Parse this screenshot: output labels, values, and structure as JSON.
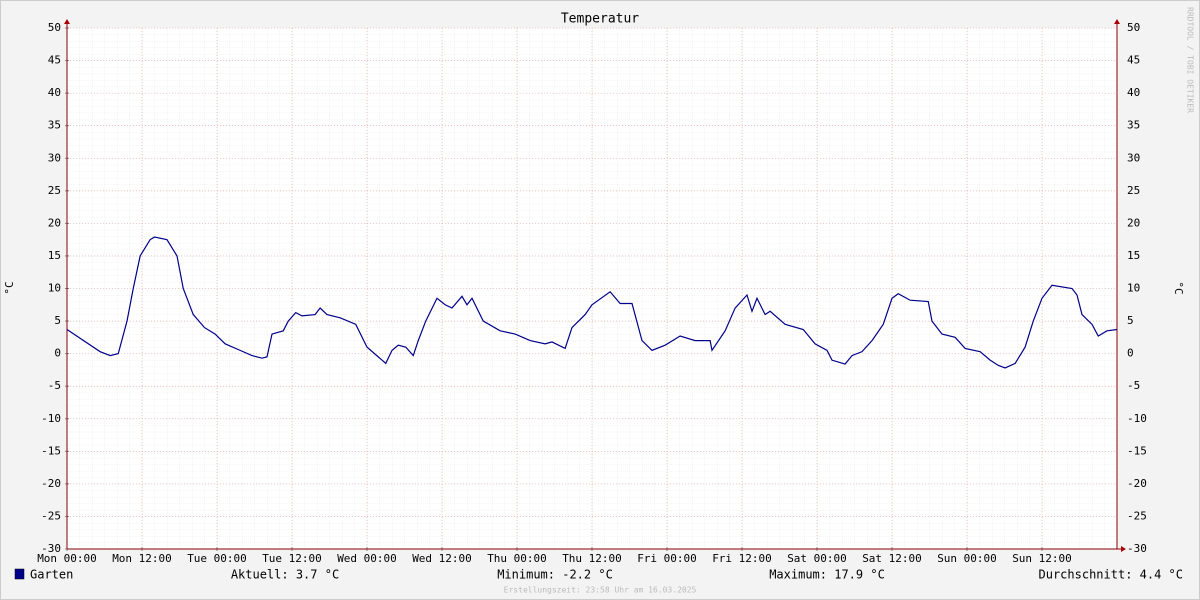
{
  "chart_data": {
    "type": "line",
    "title": "Temperatur",
    "y_label": "°C",
    "watermark": "RRDTOOL / TOBI OETIKER",
    "footer": "Erstellungszeit: 23:58 Uhr am 16.03.2025",
    "grid": true,
    "xlim": [
      0,
      168
    ],
    "xticks": [
      {
        "value": 0,
        "label": "Mon 00:00"
      },
      {
        "value": 12,
        "label": "Mon 12:00"
      },
      {
        "value": 24,
        "label": "Tue 00:00"
      },
      {
        "value": 36,
        "label": "Tue 12:00"
      },
      {
        "value": 48,
        "label": "Wed 00:00"
      },
      {
        "value": 60,
        "label": "Wed 12:00"
      },
      {
        "value": 72,
        "label": "Thu 00:00"
      },
      {
        "value": 84,
        "label": "Thu 12:00"
      },
      {
        "value": 96,
        "label": "Fri 00:00"
      },
      {
        "value": 108,
        "label": "Fri 12:00"
      },
      {
        "value": 120,
        "label": "Sat 00:00"
      },
      {
        "value": 132,
        "label": "Sat 12:00"
      },
      {
        "value": 144,
        "label": "Sun 00:00"
      },
      {
        "value": 156,
        "label": "Sun 12:00"
      }
    ],
    "ylim": [
      -30,
      50
    ],
    "yticks": [
      -30,
      -25,
      -20,
      -15,
      -10,
      -5,
      0,
      5,
      10,
      15,
      20,
      25,
      30,
      35,
      40,
      45,
      50
    ],
    "x": [
      0,
      5.3,
      6.9,
      8.2,
      9.6,
      10.6,
      11.7,
      13.3,
      14,
      16,
      17.6,
      18.6,
      20.2,
      22,
      23.7,
      25.3,
      27.7,
      29.6,
      31.2,
      32,
      32.8,
      34.6,
      35.4,
      36.6,
      37.6,
      39.7,
      40.5,
      41.6,
      43.7,
      46.2,
      48,
      49.8,
      51,
      52,
      53,
      54.2,
      55.4,
      56.2,
      57.4,
      59.2,
      60.5,
      61.6,
      63.2,
      64,
      64.8,
      66.6,
      69.3,
      71.7,
      74.1,
      76.5,
      77.6,
      79.7,
      80.8,
      82.9,
      84,
      86.9,
      88.5,
      90.4,
      92,
      93.6,
      95.7,
      98.1,
      100.5,
      102.9,
      103.2,
      105.3,
      106.9,
      108.8,
      109.6,
      110.4,
      111.7,
      112.5,
      114.9,
      117.8,
      119.7,
      121.6,
      122.4,
      124.5,
      125.6,
      127.2,
      128.8,
      130.6,
      132,
      133,
      134.9,
      137.8,
      138.4,
      140,
      142.1,
      143.7,
      146.1,
      147.7,
      149,
      150.1,
      151.7,
      153.3,
      154.6,
      156,
      157.6,
      160.8,
      161.6,
      162.4,
      164,
      165,
      166.4,
      168
    ],
    "series": [
      {
        "name": "Garten",
        "color": "#00008b",
        "values": [
          3.7,
          0.3,
          -0.3,
          0,
          5,
          10,
          15,
          17.5,
          17.9,
          17.5,
          15,
          10,
          6,
          4,
          3,
          1.5,
          0.5,
          -0.3,
          -0.7,
          -0.5,
          3,
          3.5,
          5,
          6.3,
          5.8,
          6,
          7,
          6,
          5.5,
          4.5,
          1,
          -0.5,
          -1.5,
          0.5,
          1.3,
          1,
          -0.3,
          2,
          5,
          8.5,
          7.5,
          7,
          8.8,
          7.5,
          8.5,
          5,
          3.5,
          3,
          2,
          1.5,
          1.8,
          0.8,
          4,
          6,
          7.5,
          9.5,
          7.7,
          7.7,
          2,
          0.5,
          1.3,
          2.7,
          2,
          2,
          0.5,
          3.5,
          7,
          9,
          6.5,
          8.5,
          6,
          6.5,
          4.5,
          3.7,
          1.5,
          0.5,
          -1,
          -1.6,
          -0.3,
          0.3,
          2,
          4.5,
          8.5,
          9.2,
          8.2,
          8,
          5,
          3,
          2.5,
          0.8,
          0.3,
          -1,
          -1.8,
          -2.2,
          -1.5,
          1,
          5,
          8.5,
          10.5,
          10,
          9,
          6,
          4.5,
          2.7,
          3.5,
          3.7
        ]
      }
    ],
    "stats": [
      "Aktuell: 3.7 °C",
      "Minimum: -2.2 °C",
      "Maximum: 17.9 °C",
      "Durchschnitt: 4.4 °C"
    ]
  }
}
